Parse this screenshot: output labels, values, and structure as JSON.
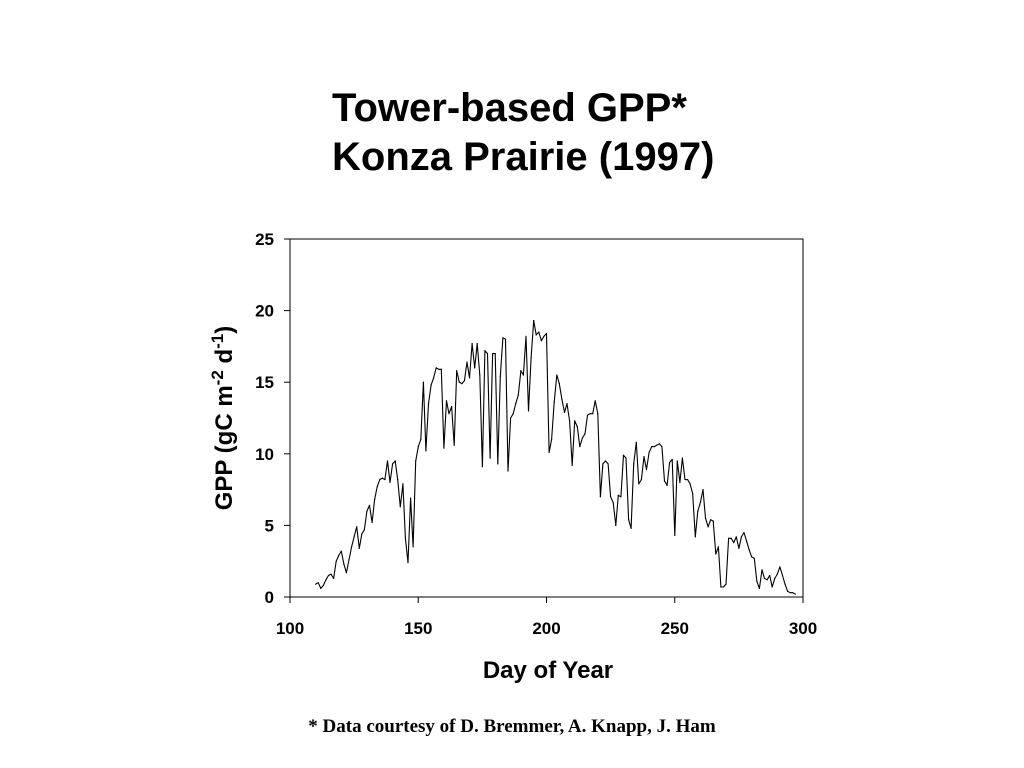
{
  "slide": {
    "title_line1": "Tower-based GPP*",
    "title_line2": "Konza Prairie (1997)",
    "footnote": "* Data courtesy of D. Bremmer, A. Knapp, J. Ham"
  },
  "chart_data": {
    "type": "line",
    "title": "",
    "xlabel": "Day of Year",
    "ylabel_parts": {
      "prefix": "GPP (gC m",
      "sup1": "-2",
      "mid": " d",
      "sup2": "-1",
      "suffix": ")"
    },
    "xlim": [
      100,
      300
    ],
    "ylim": [
      0,
      25
    ],
    "xticks": [
      100,
      150,
      200,
      250,
      300
    ],
    "yticks": [
      0,
      5,
      10,
      15,
      20,
      25
    ],
    "grid": false,
    "line_color": "#000000",
    "series": [
      {
        "x": [
          110,
          111,
          112,
          113,
          114,
          115,
          116,
          117,
          118,
          119,
          120,
          121,
          122,
          123,
          124,
          125,
          126,
          127,
          128,
          129,
          130,
          131,
          132,
          133,
          134,
          135,
          136,
          137,
          138,
          139,
          140,
          141,
          142,
          143,
          144,
          145,
          146,
          147,
          148,
          149,
          150,
          151,
          152,
          153,
          154,
          155,
          156,
          157,
          158,
          159,
          160,
          161,
          162,
          163,
          164,
          165,
          166,
          167,
          168,
          169,
          170,
          171,
          172,
          173,
          174,
          175,
          176,
          177,
          178,
          179,
          180,
          181,
          182,
          183,
          184,
          185,
          186,
          187,
          188,
          189,
          190,
          191,
          192,
          193,
          194,
          195,
          196,
          197,
          198,
          199,
          200,
          201,
          202,
          203,
          204,
          205,
          206,
          207,
          208,
          209,
          210,
          211,
          212,
          213,
          214,
          215,
          216,
          217,
          218,
          219,
          220,
          221,
          222,
          223,
          224,
          225,
          226,
          227,
          228,
          229,
          230,
          231,
          232,
          233,
          234,
          235,
          236,
          237,
          238,
          239,
          240,
          241,
          242,
          243,
          244,
          245,
          246,
          247,
          248,
          249,
          250,
          251,
          252,
          253,
          254,
          255,
          256,
          257,
          258,
          259,
          260,
          261,
          262,
          263,
          264,
          265,
          266,
          267,
          268,
          269,
          270,
          271,
          272,
          273,
          274,
          275,
          276,
          277,
          278,
          279,
          280,
          281,
          282,
          283,
          284,
          285,
          286,
          287,
          288,
          289,
          290,
          291,
          292,
          293,
          294,
          295,
          296,
          297
        ],
        "y": [
          0.9,
          1.0,
          0.6,
          0.8,
          1.2,
          1.5,
          1.6,
          1.3,
          2.5,
          2.9,
          3.2,
          2.3,
          1.7,
          2.6,
          3.5,
          4.2,
          4.9,
          3.4,
          4.4,
          4.7,
          6.0,
          6.4,
          5.2,
          6.8,
          7.7,
          8.2,
          8.3,
          8.2,
          9.5,
          8.0,
          9.3,
          9.5,
          8.2,
          6.3,
          7.9,
          4.1,
          2.4,
          6.9,
          3.5,
          9.5,
          10.5,
          11.0,
          15.0,
          10.2,
          13.5,
          14.8,
          15.3,
          16.0,
          15.9,
          15.9,
          10.4,
          13.7,
          12.8,
          13.3,
          10.6,
          15.8,
          15.0,
          14.9,
          15.1,
          16.4,
          15.3,
          17.7,
          16.0,
          17.7,
          15.5,
          9.1,
          17.2,
          17.0,
          9.7,
          17.0,
          17.0,
          9.3,
          15.4,
          18.1,
          18.0,
          8.8,
          12.5,
          12.8,
          13.5,
          14.1,
          15.8,
          15.5,
          18.2,
          13.0,
          16.7,
          19.3,
          18.3,
          18.5,
          17.9,
          18.2,
          18.4,
          10.1,
          11.0,
          13.6,
          15.5,
          14.9,
          13.8,
          12.9,
          13.5,
          12.3,
          9.2,
          12.3,
          11.9,
          10.5,
          11.1,
          11.4,
          12.7,
          12.8,
          12.8,
          13.7,
          12.8,
          7.0,
          9.3,
          9.5,
          9.3,
          7.0,
          6.6,
          5.0,
          7.1,
          7.0,
          9.9,
          9.7,
          5.4,
          4.8,
          9.3,
          10.8,
          7.9,
          8.2,
          9.8,
          8.9,
          10.1,
          10.5,
          10.5,
          10.6,
          10.7,
          10.5,
          8.1,
          7.8,
          9.4,
          9.6,
          4.3,
          9.5,
          8.0,
          9.7,
          8.2,
          8.2,
          7.9,
          7.2,
          4.2,
          6.0,
          6.6,
          7.5,
          5.5,
          4.9,
          5.4,
          5.3,
          3.0,
          3.5,
          0.7,
          0.7,
          0.9,
          4.1,
          4.1,
          3.8,
          4.2,
          3.4,
          4.2,
          4.5,
          3.9,
          3.3,
          2.8,
          2.7,
          1.1,
          0.6,
          1.9,
          1.3,
          1.2,
          1.5,
          0.7,
          1.3,
          1.6,
          2.1,
          1.5,
          0.9,
          0.4,
          0.3,
          0.3,
          0.2
        ]
      }
    ]
  }
}
